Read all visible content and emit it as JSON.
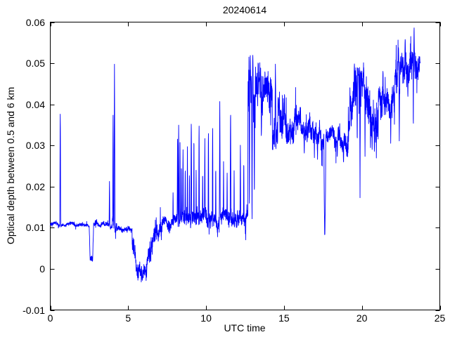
{
  "window": {
    "background": "#ffffff"
  },
  "chart_data": {
    "type": "line",
    "title": "20240614",
    "xlabel": "UTC time",
    "ylabel": "Optical depth between 0.5 and 6 km",
    "xlim": [
      0,
      25
    ],
    "ylim": [
      -0.01,
      0.06
    ],
    "xticks": [
      0,
      5,
      10,
      15,
      20,
      25
    ],
    "xtick_labels": [
      "0",
      "5",
      "10",
      "15",
      "20",
      "25"
    ],
    "yticks": [
      -0.01,
      0,
      0.01,
      0.02,
      0.03,
      0.04,
      0.05,
      0.06
    ],
    "ytick_labels": [
      "-0.01",
      "0",
      "0.01",
      "0.02",
      "0.03",
      "0.04",
      "0.05",
      "0.06"
    ],
    "grid": false,
    "legend": null,
    "line_color": "#0000ff",
    "axis_color": "#000000",
    "tick_dir": "in",
    "tick_len": 6,
    "x_start": 0.0,
    "x_end": 23.75,
    "step": 0.008,
    "seed": 20240614,
    "series_description": "Noisy lidar optical-depth time series: flat baseline ~0.011 (0-5 UTC) with spikes at 0.64 (0.041), dip at 2.6 (0.002), spikes at 3.8-4.2 (to 0.050); dip to ~0 / -0.003 at 5.3-6.2; noisy recovery to 0.011 by 7.2; spiky period 8-12.6 (baseline 0.012-0.014, spikes 0.02-0.042); high noisy plateau 12.7-14.2 (0.033-0.053); 0.03-0.045 band 14.2-17.5; sharp dip to 0.004 at 17.6; band 0.026-0.034 to 19.1; rise with spikes to 0.05 near 19.5; 0.035-0.05 band 19.7-22; high 0.042-0.059 band 22-23.7 ending ~0.05",
    "segments": [
      {
        "x0": 0.0,
        "x1": 0.6,
        "b0": 0.011,
        "b1": 0.0109,
        "n": 0.00045
      },
      {
        "x0": 0.68,
        "x1": 2.5,
        "b0": 0.0109,
        "b1": 0.0105,
        "n": 0.00045
      },
      {
        "x0": 2.56,
        "x1": 2.72,
        "b0": 0.0028,
        "b1": 0.0024,
        "n": 0.0008
      },
      {
        "x0": 2.78,
        "x1": 3.0,
        "b0": 0.011,
        "b1": 0.0108,
        "n": 0.0009
      },
      {
        "x0": 3.0,
        "x1": 3.76,
        "b0": 0.0106,
        "b1": 0.0104,
        "n": 0.0006
      },
      {
        "x0": 3.86,
        "x1": 3.98,
        "b0": 0.01,
        "b1": 0.01,
        "n": 0.0007
      },
      {
        "x0": 3.98,
        "x1": 4.22,
        "b0": 0.0115,
        "b1": 0.011,
        "n": 0.0025
      },
      {
        "x0": 4.3,
        "x1": 5.25,
        "b0": 0.0097,
        "b1": 0.0093,
        "n": 0.0006
      },
      {
        "x0": 5.25,
        "x1": 5.5,
        "b0": 0.006,
        "b1": 0.0008,
        "n": 0.0028
      },
      {
        "x0": 5.5,
        "x1": 6.2,
        "b0": -0.0002,
        "b1": -0.0002,
        "n": 0.002
      },
      {
        "x0": 6.2,
        "x1": 7.2,
        "b0": 0.003,
        "b1": 0.0098,
        "n": 0.0028
      },
      {
        "x0": 7.2,
        "x1": 8.05,
        "b0": 0.0105,
        "b1": 0.011,
        "n": 0.0014
      },
      {
        "x0": 8.05,
        "x1": 9.65,
        "b0": 0.0118,
        "b1": 0.0122,
        "n": 0.0022
      },
      {
        "x0": 9.65,
        "x1": 10.8,
        "b0": 0.0122,
        "b1": 0.0125,
        "n": 0.002
      },
      {
        "x0": 10.8,
        "x1": 11.75,
        "b0": 0.014,
        "b1": 0.0138,
        "n": 0.0022
      },
      {
        "x0": 11.75,
        "x1": 12.4,
        "b0": 0.0126,
        "b1": 0.0126,
        "n": 0.0018
      },
      {
        "x0": 12.4,
        "x1": 12.68,
        "b0": 0.0135,
        "b1": 0.014,
        "n": 0.0025
      },
      {
        "x0": 12.68,
        "x1": 13.15,
        "b0": 0.043,
        "b1": 0.0435,
        "n": 0.007
      },
      {
        "x0": 13.15,
        "x1": 14.25,
        "b0": 0.0445,
        "b1": 0.044,
        "n": 0.0055
      },
      {
        "x0": 14.25,
        "x1": 14.6,
        "b0": 0.031,
        "b1": 0.0315,
        "n": 0.004
      },
      {
        "x0": 14.6,
        "x1": 15.15,
        "b0": 0.04,
        "b1": 0.0395,
        "n": 0.0045
      },
      {
        "x0": 15.15,
        "x1": 15.85,
        "b0": 0.036,
        "b1": 0.0355,
        "n": 0.0035
      },
      {
        "x0": 15.85,
        "x1": 17.55,
        "b0": 0.0348,
        "b1": 0.033,
        "n": 0.003
      },
      {
        "x0": 17.72,
        "x1": 18.6,
        "b0": 0.0338,
        "b1": 0.0328,
        "n": 0.0022
      },
      {
        "x0": 18.6,
        "x1": 19.12,
        "b0": 0.0292,
        "b1": 0.028,
        "n": 0.0025
      },
      {
        "x0": 19.12,
        "x1": 19.42,
        "b0": 0.034,
        "b1": 0.042,
        "n": 0.005
      },
      {
        "x0": 19.42,
        "x1": 20.35,
        "b0": 0.0435,
        "b1": 0.0428,
        "n": 0.0048
      },
      {
        "x0": 20.35,
        "x1": 21.05,
        "b0": 0.0368,
        "b1": 0.0372,
        "n": 0.0048
      },
      {
        "x0": 21.05,
        "x1": 21.7,
        "b0": 0.044,
        "b1": 0.0438,
        "n": 0.004
      },
      {
        "x0": 21.7,
        "x1": 22.1,
        "b0": 0.0415,
        "b1": 0.042,
        "n": 0.004
      },
      {
        "x0": 22.1,
        "x1": 23.2,
        "b0": 0.0488,
        "b1": 0.0495,
        "n": 0.0045
      },
      {
        "x0": 23.2,
        "x1": 23.55,
        "b0": 0.0528,
        "b1": 0.0532,
        "n": 0.0038
      },
      {
        "x0": 23.55,
        "x1": 23.75,
        "b0": 0.0515,
        "b1": 0.0505,
        "n": 0.003
      }
    ],
    "spikes": [
      {
        "x": 0.64,
        "v": 0.041,
        "w": 0.05
      },
      {
        "x": 3.8,
        "v": 0.0215,
        "w": 0.04
      },
      {
        "x": 4.03,
        "v": 0.0408,
        "w": 0.04
      },
      {
        "x": 4.12,
        "v": 0.0498,
        "w": 0.06
      },
      {
        "x": 5.9,
        "v": -0.003,
        "w": 0.05
      },
      {
        "x": 7.88,
        "v": 0.019,
        "w": 0.03
      },
      {
        "x": 8.17,
        "v": 0.034,
        "w": 0.04
      },
      {
        "x": 8.24,
        "v": 0.0388,
        "w": 0.04
      },
      {
        "x": 8.33,
        "v": 0.0345,
        "w": 0.03
      },
      {
        "x": 8.42,
        "v": 0.028,
        "w": 0.03
      },
      {
        "x": 8.52,
        "v": 0.031,
        "w": 0.04
      },
      {
        "x": 8.66,
        "v": 0.0268,
        "w": 0.03
      },
      {
        "x": 8.8,
        "v": 0.0312,
        "w": 0.03
      },
      {
        "x": 8.93,
        "v": 0.0255,
        "w": 0.03
      },
      {
        "x": 9.05,
        "v": 0.0395,
        "w": 0.05
      },
      {
        "x": 9.22,
        "v": 0.0348,
        "w": 0.03
      },
      {
        "x": 9.36,
        "v": 0.025,
        "w": 0.03
      },
      {
        "x": 9.55,
        "v": 0.0378,
        "w": 0.04
      },
      {
        "x": 9.78,
        "v": 0.0262,
        "w": 0.03
      },
      {
        "x": 9.92,
        "v": 0.0325,
        "w": 0.04
      },
      {
        "x": 10.15,
        "v": 0.0358,
        "w": 0.04
      },
      {
        "x": 10.42,
        "v": 0.0378,
        "w": 0.04
      },
      {
        "x": 10.62,
        "v": 0.0272,
        "w": 0.03
      },
      {
        "x": 10.88,
        "v": 0.042,
        "w": 0.05
      },
      {
        "x": 11.12,
        "v": 0.0272,
        "w": 0.03
      },
      {
        "x": 11.35,
        "v": 0.0242,
        "w": 0.03
      },
      {
        "x": 11.57,
        "v": 0.042,
        "w": 0.05
      },
      {
        "x": 11.8,
        "v": 0.0252,
        "w": 0.03
      },
      {
        "x": 12.2,
        "v": 0.0308,
        "w": 0.04
      },
      {
        "x": 12.42,
        "v": 0.0292,
        "w": 0.03
      },
      {
        "x": 12.78,
        "v": 0.011,
        "w": 0.04
      },
      {
        "x": 12.95,
        "v": 0.01,
        "w": 0.04
      },
      {
        "x": 13.0,
        "v": 0.0528,
        "w": 0.06
      },
      {
        "x": 13.1,
        "v": 0.0125,
        "w": 0.03
      },
      {
        "x": 13.35,
        "v": 0.0518,
        "w": 0.05
      },
      {
        "x": 13.55,
        "v": 0.0312,
        "w": 0.04
      },
      {
        "x": 14.45,
        "v": 0.052,
        "w": 0.05
      },
      {
        "x": 16.3,
        "v": 0.0272,
        "w": 0.03
      },
      {
        "x": 16.95,
        "v": 0.0262,
        "w": 0.03
      },
      {
        "x": 17.15,
        "v": 0.0256,
        "w": 0.03
      },
      {
        "x": 17.62,
        "v": 0.004,
        "w": 0.12
      },
      {
        "x": 18.42,
        "v": 0.0262,
        "w": 0.03
      },
      {
        "x": 18.82,
        "v": 0.0256,
        "w": 0.04
      },
      {
        "x": 19.52,
        "v": 0.0505,
        "w": 0.05
      },
      {
        "x": 19.7,
        "v": 0.0262,
        "w": 0.03
      },
      {
        "x": 19.88,
        "v": 0.016,
        "w": 0.04
      },
      {
        "x": 20.2,
        "v": 0.0248,
        "w": 0.03
      },
      {
        "x": 20.55,
        "v": 0.028,
        "w": 0.03
      },
      {
        "x": 20.8,
        "v": 0.0285,
        "w": 0.03
      },
      {
        "x": 21.35,
        "v": 0.0492,
        "w": 0.04
      },
      {
        "x": 21.85,
        "v": 0.03,
        "w": 0.03
      },
      {
        "x": 22.35,
        "v": 0.055,
        "w": 0.04
      },
      {
        "x": 22.4,
        "v": 0.029,
        "w": 0.04
      },
      {
        "x": 22.78,
        "v": 0.0568,
        "w": 0.05
      },
      {
        "x": 22.95,
        "v": 0.04,
        "w": 0.03
      },
      {
        "x": 23.3,
        "v": 0.032,
        "w": 0.03
      },
      {
        "x": 23.35,
        "v": 0.0592,
        "w": 0.06
      }
    ]
  }
}
